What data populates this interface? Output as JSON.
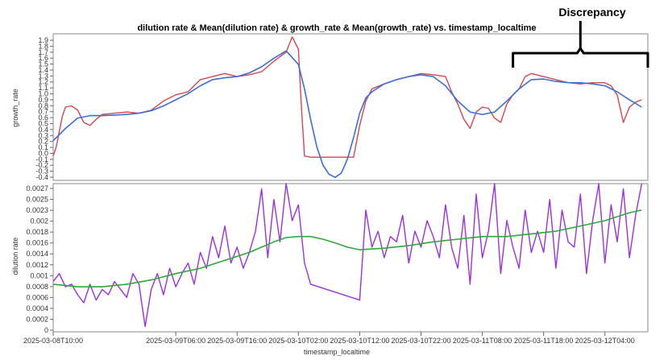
{
  "chart_data": {
    "type": "line",
    "title": "dilution rate & Mean(dilution rate) & growth_rate & Mean(growth_rate) vs. timestamp_localtime",
    "xlabel": "timestamp_localtime",
    "x_tick_labels": [
      "2025-03-08T10:00",
      "2025-03-09T06:00",
      "2025-03-09T16:00",
      "2025-03-10T02:00",
      "2025-03-10T12:00",
      "2025-03-10T22:00",
      "2025-03-11T08:00",
      "2025-03-11T18:00",
      "2025-03-12T04:00"
    ],
    "x_tick_hours": [
      0,
      20,
      30,
      40,
      50,
      60,
      70,
      80,
      90
    ],
    "xlim_hours": [
      0,
      97
    ],
    "annotation": "Discrepancy",
    "annotation_span_hours": [
      75,
      97
    ],
    "colors": {
      "raw_growth": "#d64550",
      "mean_growth": "#3c6fd6",
      "raw_dilution": "#9b30e0",
      "mean_dilution": "#2ea83a",
      "bracket": "#000000"
    },
    "panels": [
      {
        "ylabel": "growth_rate",
        "ylim": [
          -0.4,
          2.0
        ],
        "yticks": [
          "-0.4",
          "-0.3",
          "-0.2",
          "-0.1",
          "0.0",
          "0.1",
          "0.2",
          "0.3",
          "0.4",
          "0.5",
          "0.6",
          "0.7",
          "0.8",
          "0.9",
          "1.0",
          "1.1",
          "1.2",
          "1.3",
          "1.4",
          "1.5",
          "1.6",
          "1.7",
          "1.8",
          "1.9"
        ],
        "series": [
          {
            "role": "raw",
            "x": [
              0,
              0.5,
              1,
              1.5,
              2,
              3,
              4,
              5,
              6,
              7,
              8,
              10,
              12,
              14,
              16,
              18,
              20,
              22,
              24,
              26,
              28,
              30,
              32,
              34,
              36,
              38,
              39,
              40,
              40.5,
              41,
              42,
              44,
              46,
              48,
              49,
              50,
              51,
              52,
              54,
              56,
              58,
              60,
              62,
              64,
              65,
              66,
              67,
              68,
              69,
              70,
              71,
              72,
              73,
              74,
              75,
              76,
              77,
              78,
              80,
              82,
              84,
              86,
              88,
              90,
              91,
              92,
              93,
              94,
              95,
              96
            ],
            "y": [
              0.0,
              0.15,
              0.4,
              0.65,
              0.8,
              0.82,
              0.75,
              0.55,
              0.5,
              0.6,
              0.68,
              0.7,
              0.72,
              0.7,
              0.75,
              0.9,
              1.0,
              1.05,
              1.25,
              1.3,
              1.35,
              1.3,
              1.33,
              1.38,
              1.55,
              1.7,
              1.95,
              1.75,
              0.8,
              0.0,
              -0.02,
              -0.02,
              -0.02,
              -0.02,
              -0.02,
              0.5,
              0.9,
              1.1,
              1.18,
              1.25,
              1.3,
              1.35,
              1.33,
              1.3,
              1.05,
              0.85,
              0.6,
              0.45,
              0.72,
              0.8,
              0.78,
              0.62,
              0.55,
              0.85,
              1.0,
              1.1,
              1.3,
              1.35,
              1.3,
              1.25,
              1.2,
              1.18,
              1.2,
              1.2,
              1.15,
              1.0,
              0.55,
              0.8,
              0.88,
              0.92
            ]
          },
          {
            "role": "mean",
            "x": [
              0,
              2,
              4,
              6,
              8,
              10,
              12,
              14,
              16,
              18,
              20,
              22,
              24,
              26,
              28,
              30,
              32,
              34,
              36,
              38,
              40,
              41,
              42,
              43,
              44,
              45,
              46,
              47,
              48,
              49,
              50,
              51,
              52,
              54,
              56,
              58,
              60,
              62,
              64,
              66,
              68,
              70,
              72,
              74,
              76,
              78,
              80,
              82,
              84,
              86,
              88,
              90,
              92,
              94,
              96
            ],
            "y": [
              0.25,
              0.45,
              0.62,
              0.66,
              0.66,
              0.67,
              0.68,
              0.7,
              0.74,
              0.82,
              0.92,
              1.02,
              1.15,
              1.25,
              1.28,
              1.3,
              1.36,
              1.46,
              1.6,
              1.72,
              1.5,
              1.1,
              0.6,
              0.15,
              -0.15,
              -0.3,
              -0.35,
              -0.28,
              -0.05,
              0.3,
              0.7,
              0.95,
              1.05,
              1.18,
              1.25,
              1.3,
              1.33,
              1.3,
              1.15,
              0.9,
              0.72,
              0.68,
              0.72,
              0.9,
              1.1,
              1.25,
              1.26,
              1.22,
              1.2,
              1.2,
              1.18,
              1.15,
              1.05,
              0.92,
              0.8
            ]
          }
        ]
      },
      {
        "ylabel": "dilution rate",
        "ylim": [
          0,
          0.0028
        ],
        "yticks": [
          "0",
          "0.0002",
          "0.0004",
          "0.0006",
          "0.0008",
          "0.001",
          "0.0012",
          "0.0014",
          "0.0016",
          "0.0018",
          "0.002",
          "0.0023",
          "0.0025",
          "0.0027"
        ],
        "series": [
          {
            "role": "raw",
            "x": [
              0,
              1,
              2,
              3,
              4,
              5,
              6,
              7,
              8,
              9,
              10,
              11,
              12,
              13,
              14,
              15,
              16,
              17,
              18,
              19,
              20,
              21,
              22,
              23,
              24,
              25,
              26,
              27,
              28,
              29,
              30,
              31,
              32,
              33,
              34,
              35,
              36,
              37,
              38,
              39,
              40,
              41,
              42,
              50,
              51,
              52,
              53,
              54,
              55,
              56,
              57,
              58,
              59,
              60,
              61,
              62,
              63,
              64,
              65,
              66,
              67,
              68,
              69,
              70,
              71,
              72,
              73,
              74,
              75,
              76,
              77,
              78,
              79,
              80,
              81,
              82,
              83,
              84,
              85,
              86,
              87,
              88,
              89,
              90,
              91,
              92,
              93,
              94,
              95,
              96
            ],
            "y": [
              0.00095,
              0.0011,
              0.00085,
              0.0009,
              0.0007,
              0.00055,
              0.0009,
              0.0006,
              0.0008,
              0.0007,
              0.00095,
              0.0008,
              0.00065,
              0.0011,
              0.0009,
              0.0001,
              0.0008,
              0.0011,
              0.0007,
              0.0012,
              0.00085,
              0.0011,
              0.0013,
              0.0009,
              0.0015,
              0.0012,
              0.0018,
              0.0014,
              0.002,
              0.0013,
              0.0016,
              0.0012,
              0.0015,
              0.0019,
              0.0027,
              0.0014,
              0.0025,
              0.0017,
              0.0028,
              0.0021,
              0.0024,
              0.0013,
              0.0009,
              0.0006,
              0.0023,
              0.0016,
              0.0019,
              0.0014,
              0.0018,
              0.0017,
              0.0022,
              0.0013,
              0.0019,
              0.0016,
              0.0021,
              0.0018,
              0.0014,
              0.0024,
              0.0016,
              0.0012,
              0.0022,
              0.0009,
              0.0026,
              0.0014,
              0.0019,
              0.0028,
              0.0011,
              0.0021,
              0.0016,
              0.0012,
              0.0023,
              0.0015,
              0.0019,
              0.0015,
              0.0025,
              0.0012,
              0.0023,
              0.0017,
              0.0016,
              0.0026,
              0.0011,
              0.0021,
              0.0028,
              0.0013,
              0.0024,
              0.0017,
              0.0027,
              0.0014,
              0.0022,
              0.0028
            ]
          },
          {
            "role": "mean",
            "x": [
              0,
              4,
              8,
              12,
              16,
              20,
              24,
              28,
              32,
              34,
              36,
              38,
              40,
              42,
              44,
              46,
              48,
              50,
              54,
              58,
              62,
              66,
              70,
              74,
              78,
              82,
              86,
              90,
              94,
              96
            ],
            "y": [
              0.0009,
              0.00085,
              0.00085,
              0.0009,
              0.00098,
              0.0011,
              0.0012,
              0.00135,
              0.0015,
              0.0016,
              0.0017,
              0.00178,
              0.0018,
              0.0018,
              0.00175,
              0.00168,
              0.0016,
              0.00155,
              0.00158,
              0.00163,
              0.0017,
              0.00175,
              0.0018,
              0.0018,
              0.00185,
              0.0019,
              0.002,
              0.0021,
              0.00225,
              0.0023
            ]
          }
        ]
      }
    ]
  }
}
